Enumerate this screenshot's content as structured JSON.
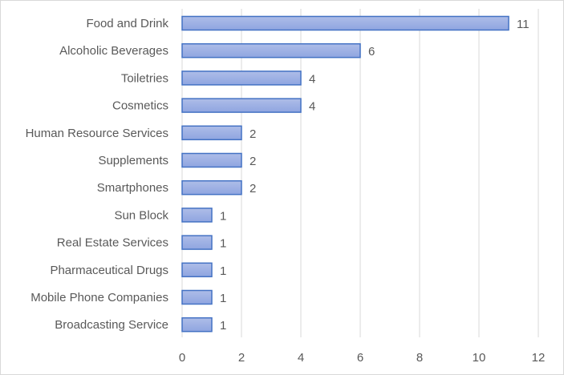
{
  "chart_data": {
    "type": "bar",
    "orientation": "horizontal",
    "title": "",
    "xlabel": "",
    "ylabel": "",
    "categories": [
      "Food and Drink",
      "Alcoholic Beverages",
      "Toiletries",
      "Cosmetics",
      "Human Resource Services",
      "Supplements",
      "Smartphones",
      "Sun Block",
      "Real Estate Services",
      "Pharmaceutical Drugs",
      "Mobile Phone Companies",
      "Broadcasting Service"
    ],
    "values": [
      11,
      6,
      4,
      4,
      2,
      2,
      2,
      1,
      1,
      1,
      1,
      1
    ],
    "data_labels": [
      "11",
      "6",
      "4",
      "4",
      "2",
      "2",
      "2",
      "1",
      "1",
      "1",
      "1",
      "1"
    ],
    "xlim": [
      0,
      12
    ],
    "xticks": [
      0,
      2,
      4,
      6,
      8,
      10,
      12
    ],
    "xtick_labels": [
      "0",
      "2",
      "4",
      "6",
      "8",
      "10",
      "12"
    ],
    "grid": "vertical",
    "legend": "none",
    "colors": {
      "bar_fill_top": "#aebde8",
      "bar_fill_bottom": "#8fa5e0",
      "bar_stroke": "#4472c4",
      "gridline": "#d9d9d9",
      "text": "#595959"
    }
  }
}
